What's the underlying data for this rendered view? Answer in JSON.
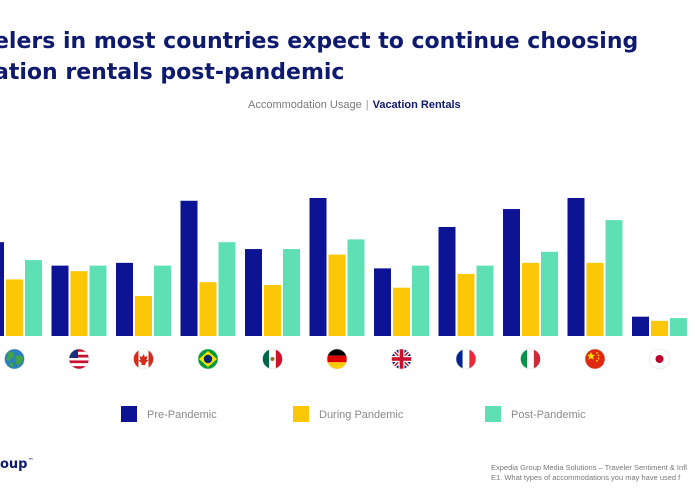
{
  "header": {
    "title_line1": "elers in most countries expect to continue choosing",
    "title_line2": "ation rentals post-pandemic",
    "subtitle_prefix": "Accommodation Usage",
    "subtitle_separator": "|",
    "subtitle_emphasis": "Vacation Rentals"
  },
  "chart_data": {
    "type": "bar",
    "title": "Accommodation Usage | Vacation Rentals",
    "xlabel": "",
    "ylabel": "",
    "ylim": [
      0,
      100
    ],
    "categories": [
      "Global",
      "United States",
      "Canada",
      "Brazil",
      "Mexico",
      "Germany",
      "United Kingdom",
      "France",
      "Italy",
      "China",
      "Japan"
    ],
    "category_icons": [
      "globe-icon",
      "flag-us-icon",
      "flag-canada-icon",
      "flag-brazil-icon",
      "flag-mexico-icon",
      "flag-germany-icon",
      "flag-uk-icon",
      "flag-france-icon",
      "flag-italy-icon",
      "flag-china-icon",
      "flag-japan-icon"
    ],
    "series": [
      {
        "name": "Pre-Pandemic",
        "color": "#0c1494",
        "values": [
          68,
          51,
          53,
          98,
          63,
          100,
          49,
          79,
          92,
          100,
          14
        ]
      },
      {
        "name": "During Pandemic",
        "color": "#fcc707",
        "values": [
          41,
          47,
          29,
          39,
          37,
          59,
          35,
          45,
          53,
          53,
          11
        ]
      },
      {
        "name": "Post-Pandemic",
        "color": "#5fe0b4",
        "values": [
          55,
          51,
          51,
          68,
          63,
          70,
          51,
          51,
          61,
          84,
          13
        ]
      }
    ],
    "grid": false,
    "legend_position": "bottom"
  },
  "colors": {
    "title": "#0e1a6e",
    "subtitle": "#7a7a7a",
    "pre": "#0c1494",
    "during": "#fcc707",
    "post": "#5fe0b4"
  },
  "branding": {
    "logo_text": "oup",
    "logo_mark": "™"
  },
  "footer": {
    "line1": "Expedia Group Media Solutions – Traveler Sentiment & Infl",
    "line2": "E1. What types of accommodations you may have used f"
  }
}
